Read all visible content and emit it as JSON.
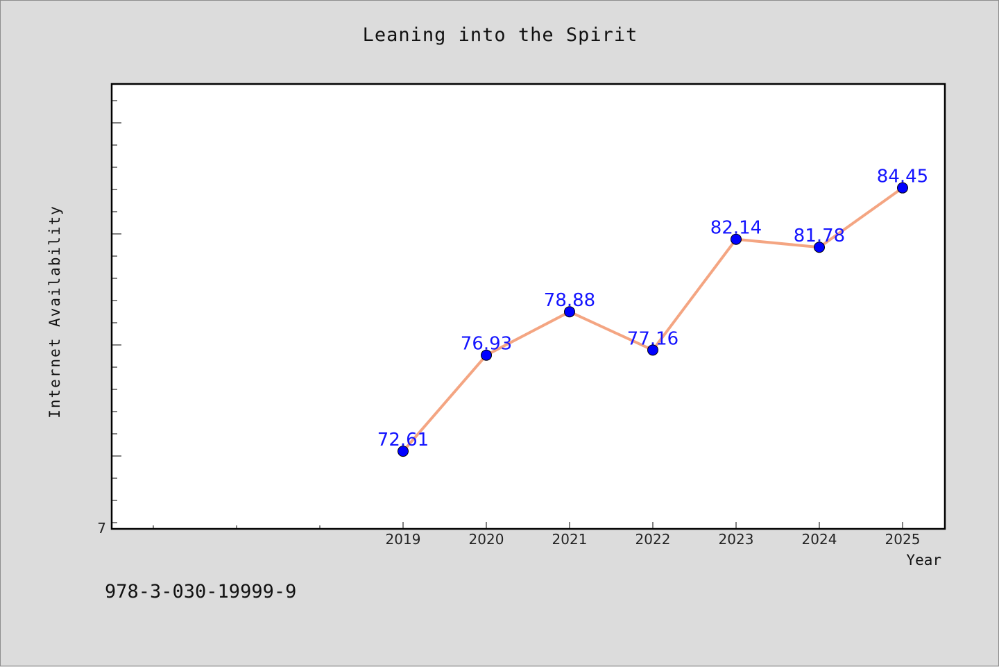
{
  "chart_data": {
    "type": "line",
    "title": "Leaning into the Spirit",
    "xlabel": "Year",
    "ylabel": "Internet Availability",
    "x": [
      "2019",
      "2020",
      "2021",
      "2022",
      "2023",
      "2024",
      "2025"
    ],
    "series": [
      {
        "values": [
          72.61,
          76.93,
          78.88,
          77.16,
          82.14,
          81.78,
          84.45
        ],
        "data_labels": [
          "72.61",
          "76.93",
          "78.88",
          "77.16",
          "82.14",
          "81.78",
          "84.45"
        ],
        "line_color": "#f4a582",
        "marker_color": "#0000ff",
        "label_color": "#1414ff"
      }
    ],
    "ylim": [
      69.12,
      89.12
    ],
    "y_tick_labels": [
      "7"
    ],
    "grid": false,
    "legend": "none"
  },
  "footer_note": "978-3-030-19999-9",
  "colors": {
    "background": "#dcdcdc",
    "plot_background": "#ffffff",
    "axis": "#000000"
  }
}
